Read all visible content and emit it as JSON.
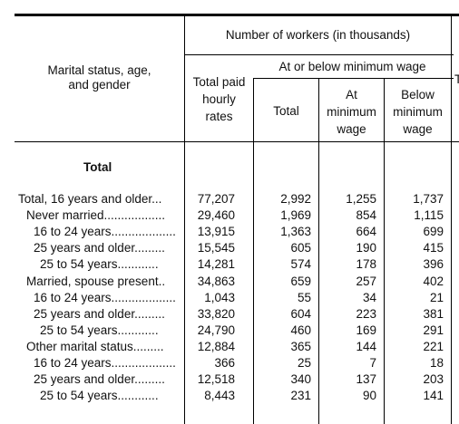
{
  "header": {
    "stub": "Marital status, age,\nand gender",
    "workers": "Number of workers (in thousands)",
    "total_paid": "Total paid\nhourly\nrates",
    "at_or_below": "At or below minimum wage",
    "total": "Total",
    "at_min": "At\nminimum\nwage",
    "below_min": "Below\nminimum\nwage",
    "cut": "T"
  },
  "section_title": "Total",
  "rows": [
    {
      "label": "Total, 16 years and older...",
      "indent": 0,
      "c1": "77,207",
      "c2": "2,992",
      "c3": "1,255",
      "c4": "1,737"
    },
    {
      "label": "Never married..................",
      "indent": 1,
      "c1": "29,460",
      "c2": "1,969",
      "c3": "854",
      "c4": "1,115"
    },
    {
      "label": "16 to 24 years...................",
      "indent": 2,
      "c1": "13,915",
      "c2": "1,363",
      "c3": "664",
      "c4": "699"
    },
    {
      "label": "25 years and older.........",
      "indent": 2,
      "c1": "15,545",
      "c2": "605",
      "c3": "190",
      "c4": "415"
    },
    {
      "label": "25 to 54 years............",
      "indent": 3,
      "c1": "14,281",
      "c2": "574",
      "c3": "178",
      "c4": "396"
    },
    {
      "label": "Married, spouse present..",
      "indent": 1,
      "c1": "34,863",
      "c2": "659",
      "c3": "257",
      "c4": "402"
    },
    {
      "label": "16 to 24 years...................",
      "indent": 2,
      "c1": "1,043",
      "c2": "55",
      "c3": "34",
      "c4": "21"
    },
    {
      "label": "25 years and older.........",
      "indent": 2,
      "c1": "33,820",
      "c2": "604",
      "c3": "223",
      "c4": "381"
    },
    {
      "label": "25 to 54 years............",
      "indent": 3,
      "c1": "24,790",
      "c2": "460",
      "c3": "169",
      "c4": "291"
    },
    {
      "label": "Other marital status.........",
      "indent": 1,
      "c1": "12,884",
      "c2": "365",
      "c3": "144",
      "c4": "221"
    },
    {
      "label": "16 to 24 years...................",
      "indent": 2,
      "c1": "366",
      "c2": "25",
      "c3": "7",
      "c4": "18"
    },
    {
      "label": "25 years and older.........",
      "indent": 2,
      "c1": "12,518",
      "c2": "340",
      "c3": "137",
      "c4": "203"
    },
    {
      "label": "25 to 54 years............",
      "indent": 3,
      "c1": "8,443",
      "c2": "231",
      "c3": "90",
      "c4": "141"
    }
  ]
}
